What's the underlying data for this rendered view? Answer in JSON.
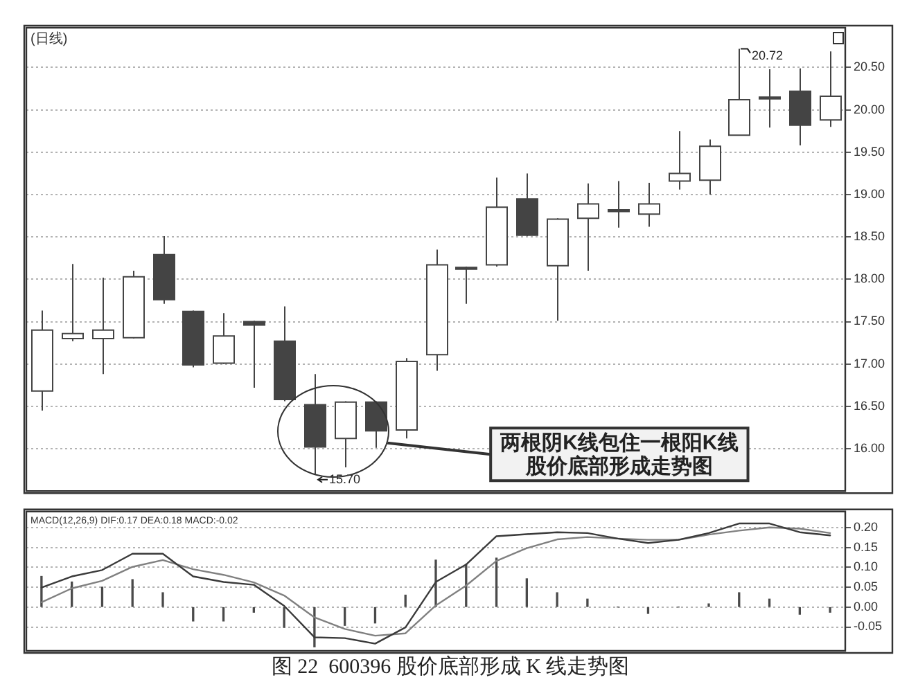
{
  "chart_data": [
    {
      "type": "candlestick",
      "title": "(日线)",
      "categories": [
        null,
        null,
        null,
        null,
        null,
        null,
        null,
        null,
        null,
        null,
        null,
        null,
        null,
        null,
        null,
        null,
        null,
        null,
        null,
        null,
        null,
        null,
        null,
        null,
        null,
        null,
        null
      ],
      "ohlc": [
        [
          16.68,
          17.63,
          16.45,
          17.4
        ],
        [
          17.3,
          18.18,
          17.27,
          17.36
        ],
        [
          17.3,
          18.02,
          16.88,
          17.4
        ],
        [
          17.31,
          18.1,
          17.3,
          18.03
        ],
        [
          18.29,
          18.51,
          17.71,
          17.76
        ],
        [
          17.62,
          17.63,
          16.96,
          16.99
        ],
        [
          17.01,
          17.6,
          17.0,
          17.33
        ],
        [
          17.5,
          17.51,
          16.72,
          17.46
        ],
        [
          17.27,
          17.68,
          16.56,
          16.58
        ],
        [
          16.52,
          16.88,
          15.7,
          16.02
        ],
        [
          16.12,
          16.56,
          15.78,
          16.55
        ],
        [
          16.55,
          16.56,
          16.01,
          16.21
        ],
        [
          16.22,
          17.07,
          16.12,
          17.03
        ],
        [
          17.11,
          18.35,
          16.92,
          18.17
        ],
        [
          18.14,
          18.15,
          17.71,
          18.12
        ],
        [
          18.17,
          19.2,
          18.15,
          18.85
        ],
        [
          18.95,
          19.25,
          18.51,
          18.52
        ],
        [
          18.16,
          18.72,
          17.51,
          18.71
        ],
        [
          18.72,
          19.13,
          18.1,
          18.89
        ],
        [
          18.82,
          19.16,
          18.61,
          18.8
        ],
        [
          18.77,
          19.14,
          18.62,
          18.89
        ],
        [
          19.16,
          19.75,
          19.06,
          19.25
        ],
        [
          19.17,
          19.65,
          19.0,
          19.57
        ],
        [
          19.7,
          20.72,
          19.7,
          20.12
        ],
        [
          20.15,
          20.48,
          19.79,
          20.13
        ],
        [
          20.22,
          20.49,
          19.58,
          19.82
        ],
        [
          19.88,
          20.69,
          19.8,
          20.16
        ]
      ],
      "color": "#444444",
      "ylim": [
        15.5,
        20.97
      ],
      "yticks": [
        {
          "value": 16,
          "label": "16.00"
        },
        {
          "value": 16.5,
          "label": "16.50"
        },
        {
          "value": 17,
          "label": "17.00"
        },
        {
          "value": 17.5,
          "label": "17.50"
        },
        {
          "value": 18,
          "label": "18.00"
        },
        {
          "value": 18.5,
          "label": "18.50"
        },
        {
          "value": 19,
          "label": "19.00"
        },
        {
          "value": 19.5,
          "label": "19.50"
        },
        {
          "value": 20,
          "label": "20.00"
        },
        {
          "value": 20.5,
          "label": "20.50"
        }
      ],
      "grid": "y",
      "tick_labels": "y",
      "annotations": [
        "20.72",
        "15.70",
        "两根阴K线包住一根阳K线股价底部形成走势图"
      ]
    },
    {
      "type": "line",
      "title": "MACD(12,26,9) DIF:0.17 DEA:0.18 MACD:-0.02",
      "categories": [
        null,
        null,
        null,
        null,
        null,
        null,
        null,
        null,
        null,
        null,
        null,
        null,
        null,
        null,
        null,
        null,
        null,
        null,
        null,
        null,
        null,
        null,
        null,
        null,
        null,
        null,
        null
      ],
      "series": [
        {
          "type": "line",
          "color": "#3a3a3a",
          "values": [
            0.049,
            0.077,
            0.093,
            0.134,
            0.134,
            0.077,
            0.063,
            0.056,
            0.003,
            -0.076,
            -0.078,
            -0.092,
            -0.051,
            0.063,
            0.107,
            0.178,
            0.183,
            0.188,
            0.186,
            0.172,
            0.161,
            0.169,
            0.186,
            0.21,
            0.21,
            0.188,
            0.18
          ]
        },
        {
          "type": "line",
          "color": "#808080",
          "values": [
            0.012,
            0.047,
            0.066,
            0.101,
            0.118,
            0.095,
            0.081,
            0.062,
            0.029,
            -0.026,
            -0.055,
            -0.072,
            -0.066,
            0.004,
            0.054,
            0.116,
            0.148,
            0.17,
            0.176,
            0.172,
            0.169,
            0.169,
            0.182,
            0.192,
            0.2,
            0.197,
            0.186
          ]
        },
        {
          "type": "bar",
          "color": "#4a4a4a",
          "values": [
            0.077,
            0.063,
            0.05,
            0.069,
            0.036,
            -0.035,
            -0.035,
            -0.013,
            -0.051,
            -0.1,
            -0.046,
            -0.04,
            0.03,
            0.118,
            0.107,
            0.123,
            0.071,
            0.036,
            0.02,
            0,
            -0.016,
            0,
            0.008,
            0.036,
            0.02,
            -0.018,
            -0.013
          ]
        }
      ],
      "marker": "none",
      "ylim": [
        -0.11,
        0.24
      ],
      "yticks": [
        {
          "value": -0.05,
          "label": "-0.05"
        },
        {
          "value": 0,
          "label": "0.00"
        },
        {
          "value": 0.05,
          "label": "0.05"
        },
        {
          "value": 0.1,
          "label": "0.10"
        },
        {
          "value": 0.15,
          "label": "0.15"
        },
        {
          "value": 0.2,
          "label": "0.20"
        }
      ],
      "grid": "y",
      "tick_labels": "y",
      "annotations": [
        "图 22  600396 股价底部形成 K 线走势图"
      ]
    }
  ]
}
